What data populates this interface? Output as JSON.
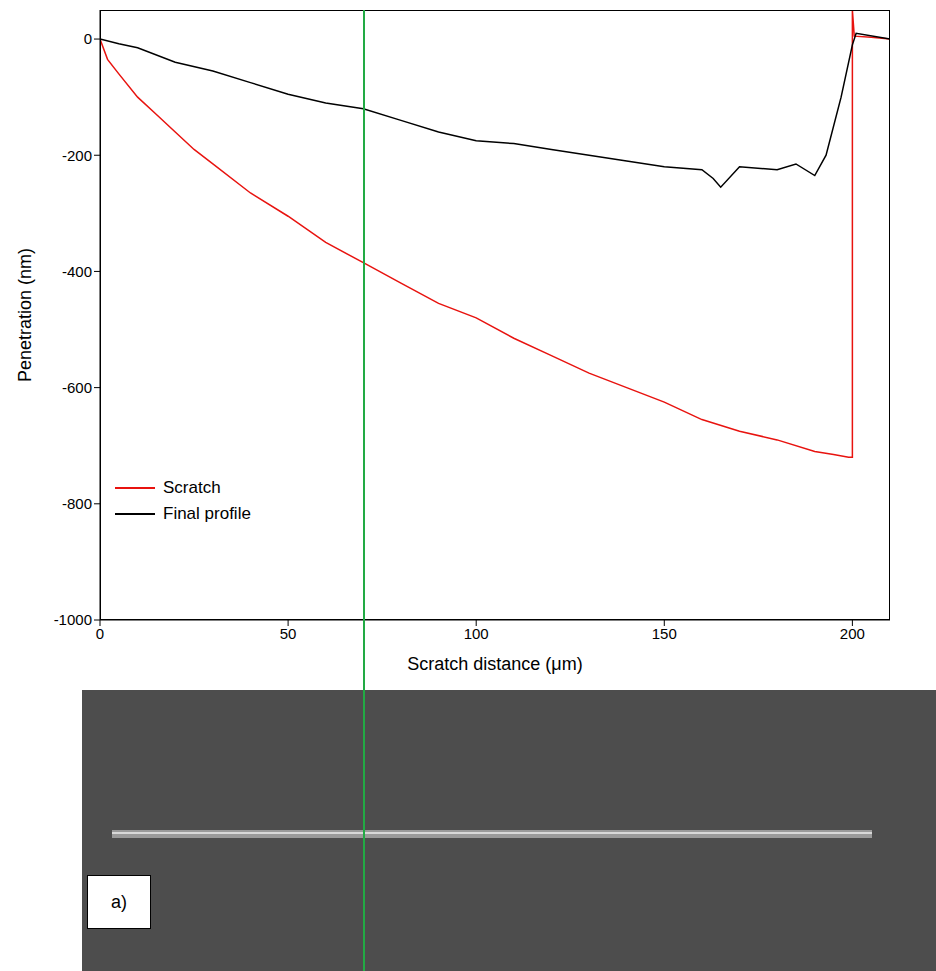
{
  "chart_data": {
    "type": "line",
    "x_label": "Scratch distance (μm)",
    "y_label": "Penetration (nm)",
    "xlim": [
      0,
      210
    ],
    "xticks": [
      0,
      50,
      100,
      150,
      200
    ],
    "ylim": [
      -1000,
      50
    ],
    "yticks": [
      -1000,
      -800,
      -600,
      -400,
      -200,
      0
    ],
    "grid": false,
    "legend": "lower left",
    "vline": 70,
    "series": [
      {
        "name": "Scratch",
        "color": "#e8130f",
        "x": [
          0,
          2,
          5,
          10,
          15,
          20,
          25,
          30,
          40,
          50,
          60,
          70,
          80,
          90,
          100,
          110,
          120,
          130,
          140,
          150,
          160,
          170,
          180,
          190,
          195,
          199,
          200,
          200,
          200.5,
          205,
          210
        ],
        "values": [
          0,
          -35,
          -60,
          -100,
          -130,
          -160,
          -190,
          -215,
          -265,
          -305,
          -350,
          -385,
          -420,
          -455,
          -480,
          -515,
          -545,
          -575,
          -600,
          -625,
          -655,
          -675,
          -690,
          -710,
          -715,
          -720,
          -720,
          50,
          5,
          3,
          0
        ]
      },
      {
        "name": "Final profile",
        "color": "#000000",
        "x": [
          0,
          5,
          10,
          20,
          30,
          40,
          50,
          60,
          70,
          80,
          90,
          100,
          110,
          120,
          130,
          140,
          150,
          160,
          163,
          165,
          170,
          180,
          185,
          190,
          193,
          197,
          200,
          201,
          210
        ],
        "values": [
          0,
          -8,
          -15,
          -40,
          -55,
          -75,
          -95,
          -110,
          -120,
          -140,
          -160,
          -175,
          -180,
          -190,
          -200,
          -210,
          -220,
          -225,
          -240,
          -255,
          -220,
          -225,
          -215,
          -235,
          -200,
          -100,
          -10,
          10,
          0
        ]
      }
    ]
  },
  "image": {
    "label": "a)"
  }
}
